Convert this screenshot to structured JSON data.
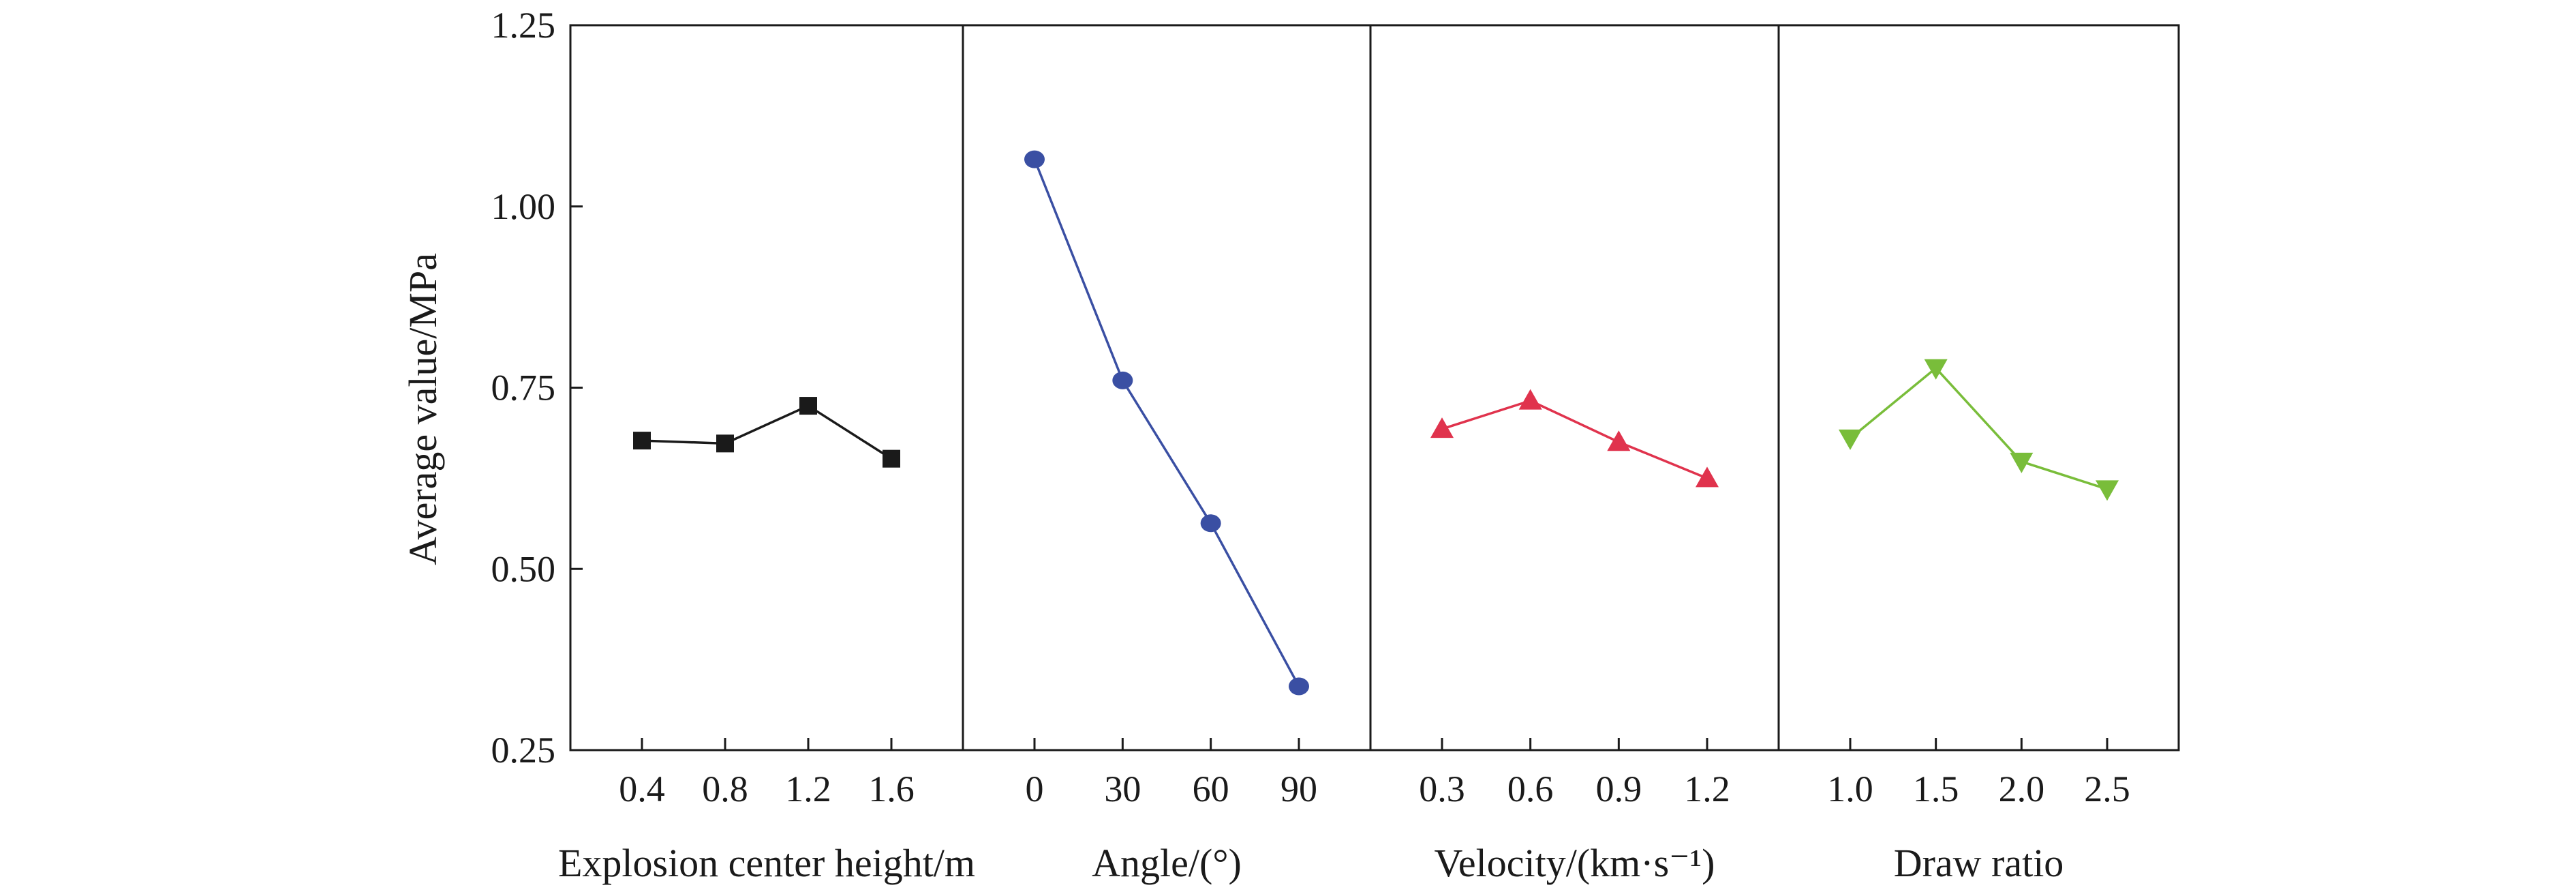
{
  "chart_data": {
    "type": "line",
    "ylabel": "Average value/MPa",
    "ylim": [
      0.25,
      1.25
    ],
    "yticks": [
      "0.25",
      "0.50",
      "0.75",
      "1.00",
      "1.25"
    ],
    "grid": false,
    "panels": [
      {
        "xlabel": "Explosion center height/m",
        "categories": [
          "0.4",
          "0.8",
          "1.2",
          "1.6"
        ],
        "values": [
          0.677,
          0.673,
          0.725,
          0.652
        ],
        "marker": "square",
        "color": "#1a1a1a"
      },
      {
        "xlabel": "Angle/(°)",
        "categories": [
          "0",
          "30",
          "60",
          "90"
        ],
        "values": [
          1.065,
          0.76,
          0.563,
          0.338
        ],
        "marker": "circle",
        "color": "#3a4fa3"
      },
      {
        "xlabel": "Velocity/(km·s⁻¹)",
        "categories": [
          "0.3",
          "0.6",
          "0.9",
          "1.2"
        ],
        "values": [
          0.693,
          0.732,
          0.675,
          0.625
        ],
        "marker": "triangle-up",
        "color": "#e0334d"
      },
      {
        "xlabel": "Draw ratio",
        "categories": [
          "1.0",
          "1.5",
          "2.0",
          "2.5"
        ],
        "values": [
          0.68,
          0.777,
          0.648,
          0.61
        ],
        "marker": "triangle-down",
        "color": "#79bd3a"
      }
    ]
  }
}
